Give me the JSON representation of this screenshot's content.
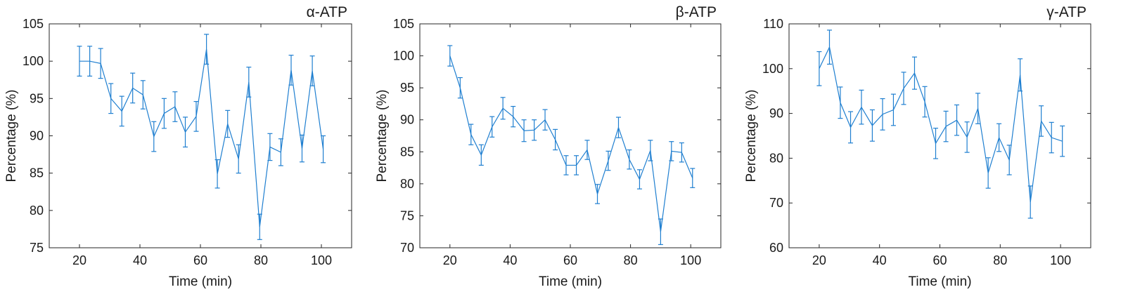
{
  "colors": {
    "series": "#1f7fd0",
    "axis": "#262626"
  },
  "chart_data": [
    {
      "type": "line",
      "title": "α-ATP",
      "xlabel": "Time (min)",
      "ylabel": "Percentage (%)",
      "xlim": [
        10,
        110
      ],
      "ylim": [
        75,
        105
      ],
      "xticks": [
        20,
        40,
        60,
        80,
        100
      ],
      "yticks": [
        75,
        80,
        85,
        90,
        95,
        100,
        105
      ],
      "error_bars": true,
      "grid": false,
      "x": [
        20,
        23.4,
        27,
        30.4,
        34,
        37.6,
        41,
        44.6,
        48,
        51.6,
        55,
        58.6,
        62,
        65.6,
        69,
        72.6,
        76,
        79.6,
        83,
        86.6,
        90,
        93.6,
        97,
        100.6
      ],
      "y": [
        100,
        100,
        99.7,
        95,
        93.3,
        96.4,
        95.5,
        89.9,
        93,
        93.9,
        90.5,
        92.6,
        101.6,
        84.9,
        91.6,
        86.9,
        97.2,
        77.8,
        88.5,
        87.8,
        98.8,
        88.3,
        98.7,
        88.2
      ],
      "err": [
        2,
        2,
        2,
        2,
        2,
        2,
        1.9,
        2,
        2,
        2,
        2,
        2,
        2,
        1.9,
        1.8,
        1.9,
        2,
        1.7,
        1.8,
        1.8,
        2,
        1.8,
        2,
        1.8
      ]
    },
    {
      "type": "line",
      "title": "β-ATP",
      "xlabel": "Time (min)",
      "ylabel": "Percentage (%)",
      "xlim": [
        10,
        110
      ],
      "ylim": [
        70,
        105
      ],
      "xticks": [
        20,
        40,
        60,
        80,
        100
      ],
      "yticks": [
        70,
        75,
        80,
        85,
        90,
        95,
        100,
        105
      ],
      "error_bars": true,
      "grid": false,
      "x": [
        20,
        23.4,
        27,
        30.4,
        34,
        37.6,
        41,
        44.6,
        48,
        51.6,
        55,
        58.6,
        62,
        65.6,
        69,
        72.6,
        76,
        79.6,
        83,
        86.6,
        90,
        93.6,
        97,
        100.6
      ],
      "y": [
        100,
        95,
        87.7,
        84.5,
        88.9,
        91.8,
        90.5,
        88.3,
        88.4,
        90,
        86.9,
        82.9,
        82.9,
        85.3,
        78.4,
        83.6,
        88.8,
        83.8,
        80.7,
        85.2,
        72.5,
        85.1,
        84.9,
        80.9
      ],
      "err": [
        1.6,
        1.6,
        1.6,
        1.6,
        1.6,
        1.7,
        1.6,
        1.7,
        1.6,
        1.6,
        1.6,
        1.5,
        1.5,
        1.5,
        1.5,
        1.5,
        1.6,
        1.5,
        1.5,
        1.6,
        2,
        1.5,
        1.5,
        1.5
      ]
    },
    {
      "type": "line",
      "title": "γ-ATP",
      "xlabel": "Time (min)",
      "ylabel": "Percentage (%)",
      "xlim": [
        10,
        110
      ],
      "ylim": [
        60,
        110
      ],
      "xticks": [
        20,
        40,
        60,
        80,
        100
      ],
      "yticks": [
        60,
        70,
        80,
        90,
        100,
        110
      ],
      "error_bars": true,
      "grid": false,
      "x": [
        20,
        23.4,
        27,
        30.4,
        34,
        37.6,
        41,
        44.6,
        48,
        51.6,
        55,
        58.6,
        62,
        65.6,
        69,
        72.6,
        76,
        79.6,
        83,
        86.6,
        90,
        93.6,
        97,
        100.6
      ],
      "y": [
        100,
        104.8,
        92.4,
        86.9,
        91.4,
        87.3,
        89.8,
        90.8,
        95.6,
        99,
        92.6,
        83.3,
        87.1,
        88.5,
        84.7,
        91.1,
        76.7,
        84.6,
        79.6,
        98.6,
        70.2,
        88.3,
        84.6,
        83.8
      ],
      "err": [
        3.8,
        3.8,
        3.5,
        3.5,
        3.8,
        3.5,
        3.5,
        3.5,
        3.6,
        3.6,
        3.4,
        3.4,
        3.4,
        3.4,
        3.4,
        3.4,
        3.4,
        3.1,
        3.3,
        3.6,
        3.6,
        3.4,
        3.4,
        3.4
      ]
    }
  ]
}
